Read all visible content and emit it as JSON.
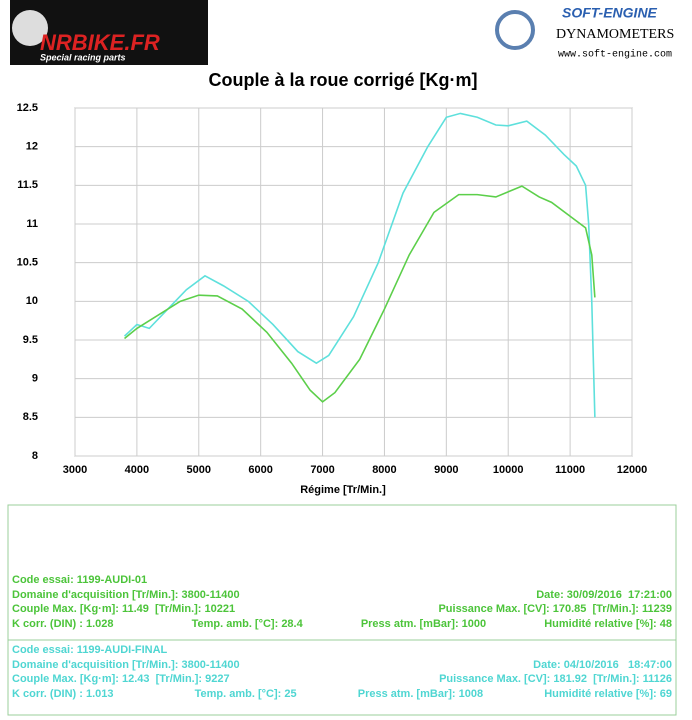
{
  "header": {
    "brand": "NRBIKE.FR",
    "brand_tagline": "Special racing parts",
    "maker": "SOFT-ENGINE",
    "maker_line": "DYNAMOMETERS",
    "maker_url": "www.soft-engine.com"
  },
  "chart_data": {
    "type": "line",
    "title": "Couple à la roue corrigé [Kg·m]",
    "x_label": "Régime [Tr/Min.]",
    "xlim": [
      3000,
      12000
    ],
    "xticks": [
      3000,
      4000,
      5000,
      6000,
      7000,
      8000,
      9000,
      10000,
      11000,
      12000
    ],
    "ylim": [
      8,
      12.5
    ],
    "yticks": [
      8,
      8.5,
      9,
      9.5,
      10,
      10.5,
      11,
      11.5,
      12,
      12.5
    ],
    "grid": true,
    "series": [
      {
        "color": "#5ee0dc",
        "x": [
          3800,
          4000,
          4200,
          4500,
          4800,
          5100,
          5400,
          5800,
          6200,
          6600,
          6900,
          7100,
          7500,
          7900,
          8300,
          8700,
          9000,
          9227,
          9500,
          9800,
          10000,
          10300,
          10600,
          10900,
          11100,
          11250,
          11300,
          11350,
          11400
        ],
        "values": [
          9.55,
          9.7,
          9.65,
          9.9,
          10.15,
          10.33,
          10.2,
          10.0,
          9.7,
          9.35,
          9.2,
          9.3,
          9.8,
          10.5,
          11.4,
          12.0,
          12.38,
          12.43,
          12.38,
          12.28,
          12.27,
          12.33,
          12.15,
          11.9,
          11.75,
          11.5,
          11.0,
          10.0,
          8.5
        ]
      },
      {
        "color": "#5ccf4a",
        "x": [
          3800,
          4000,
          4300,
          4700,
          5000,
          5300,
          5700,
          6100,
          6500,
          6800,
          7000,
          7200,
          7600,
          8000,
          8400,
          8800,
          9200,
          9500,
          9800,
          10221,
          10500,
          10700,
          11000,
          11250,
          11350,
          11400
        ],
        "values": [
          9.52,
          9.65,
          9.8,
          10.0,
          10.08,
          10.07,
          9.9,
          9.6,
          9.2,
          8.85,
          8.7,
          8.82,
          9.25,
          9.9,
          10.6,
          11.15,
          11.38,
          11.38,
          11.35,
          11.49,
          11.35,
          11.28,
          11.1,
          10.95,
          10.6,
          10.05
        ]
      }
    ]
  },
  "tests": [
    {
      "color": "#4cc43a",
      "rows": [
        [
          "Code essai: 1199-AUDI-01"
        ],
        [
          "Domaine d'acquisition [Tr/Min.]: 3800-11400",
          "Date: 30/09/2016  17:21:00"
        ],
        [
          "Couple Max. [Kg·m]: 11.49  [Tr/Min.]: 10221",
          "Puissance Max. [CV]: 170.85  [Tr/Min.]: 11239"
        ],
        [
          "K corr. (DIN) : 1.028",
          "Temp. amb. [°C]: 28.4",
          "Press atm. [mBar]: 1000",
          "Humidité relative [%]: 48"
        ]
      ]
    },
    {
      "color": "#4fd6d2",
      "rows": [
        [
          "Code essai: 1199-AUDI-FINAL"
        ],
        [
          "Domaine d'acquisition [Tr/Min.]: 3800-11400",
          "Date: 04/10/2016   18:47:00"
        ],
        [
          "Couple Max. [Kg·m]: 12.43  [Tr/Min.]: 9227",
          "Puissance Max. [CV]: 181.92  [Tr/Min.]: 11126"
        ],
        [
          "K corr. (DIN) : 1.013",
          "Temp. amb. [°C]: 25",
          "Press atm. [mBar]: 1008",
          "Humidité relative [%]: 69"
        ]
      ]
    }
  ]
}
